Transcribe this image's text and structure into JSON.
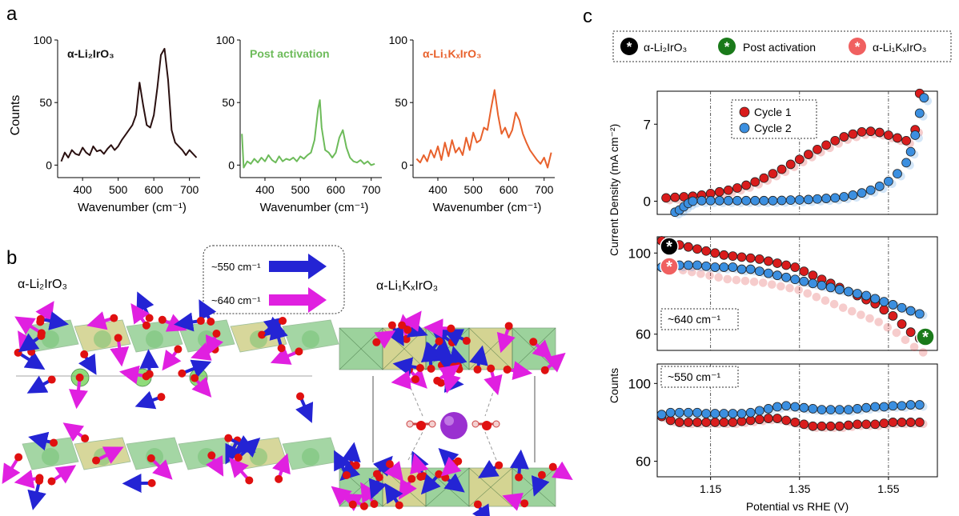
{
  "panel_labels": {
    "a": "a",
    "b": "b",
    "c": "c"
  },
  "colors": {
    "li2iro3": "#2a1010",
    "post": "#6dbb5a",
    "li1kx": "#e8612c",
    "cycle1": "#d91c1c",
    "cycle2": "#3b8fe0",
    "blue_arrow": "#2424d4",
    "magenta_arrow": "#e020e0",
    "octa_green": "#5bb55b",
    "octa_yellow": "#b8b84a",
    "oxygen": "#e01010",
    "potassium": "#9a30d0",
    "lithium": "#8fdc7a",
    "legend_green_star": "#1a7a1a",
    "legend_pink_star": "#f06060"
  },
  "panel_b": {
    "left_title": "α-Li₂IrO₃",
    "right_title": "α-Li₁KₓIrO₃",
    "legend": [
      {
        "label": "~550 cm⁻¹",
        "color": "#2424d4"
      },
      {
        "label": "~640 cm⁻¹",
        "color": "#e020e0"
      }
    ]
  },
  "chart_data": [
    {
      "type": "line",
      "panel": "a-1",
      "label": "α-Li₂IrO₃",
      "xlabel": "Wavenumber (cm⁻¹)",
      "ylabel": "Counts",
      "xlim": [
        330,
        730
      ],
      "ylim": [
        -10,
        100
      ],
      "xticks": [
        "400",
        "500",
        "600",
        "700"
      ],
      "yticks": [
        "0",
        "50",
        "100"
      ],
      "x": [
        340,
        350,
        360,
        370,
        380,
        390,
        400,
        410,
        420,
        430,
        440,
        450,
        460,
        470,
        480,
        490,
        500,
        510,
        520,
        530,
        540,
        550,
        560,
        570,
        580,
        590,
        600,
        610,
        620,
        630,
        640,
        650,
        660,
        670,
        680,
        690,
        700,
        710,
        720
      ],
      "y": [
        3,
        10,
        6,
        12,
        9,
        8,
        14,
        10,
        8,
        15,
        11,
        12,
        9,
        13,
        16,
        12,
        15,
        20,
        24,
        28,
        32,
        40,
        66,
        48,
        32,
        30,
        40,
        62,
        88,
        93,
        68,
        28,
        18,
        15,
        12,
        8,
        12,
        9,
        6
      ]
    },
    {
      "type": "line",
      "panel": "a-2",
      "label": "Post activation",
      "xlabel": "Wavenumber (cm⁻¹)",
      "ylabel": "",
      "xlim": [
        330,
        730
      ],
      "ylim": [
        -10,
        100
      ],
      "xticks": [
        "400",
        "500",
        "600",
        "700"
      ],
      "yticks": [
        "0",
        "50",
        "100"
      ],
      "x": [
        335,
        340,
        350,
        360,
        370,
        380,
        390,
        400,
        410,
        420,
        430,
        440,
        450,
        460,
        470,
        480,
        490,
        500,
        510,
        520,
        530,
        540,
        550,
        555,
        560,
        570,
        580,
        590,
        600,
        610,
        620,
        630,
        640,
        650,
        660,
        670,
        680,
        690,
        700,
        710
      ],
      "y": [
        25,
        -2,
        3,
        1,
        5,
        2,
        6,
        3,
        8,
        4,
        2,
        7,
        3,
        5,
        4,
        6,
        3,
        7,
        5,
        8,
        10,
        20,
        45,
        52,
        30,
        12,
        10,
        6,
        10,
        22,
        28,
        14,
        6,
        3,
        2,
        4,
        1,
        3,
        0,
        1
      ]
    },
    {
      "type": "line",
      "panel": "a-3",
      "label": "α-Li₁KₓIrO₃",
      "xlabel": "Wavenumber (cm⁻¹)",
      "ylabel": "",
      "xlim": [
        330,
        730
      ],
      "ylim": [
        -10,
        100
      ],
      "xticks": [
        "400",
        "500",
        "600",
        "700"
      ],
      "yticks": [
        "0",
        "50",
        "100"
      ],
      "x": [
        340,
        350,
        360,
        370,
        380,
        390,
        400,
        410,
        420,
        430,
        440,
        450,
        460,
        470,
        480,
        490,
        500,
        510,
        520,
        530,
        540,
        550,
        560,
        570,
        580,
        590,
        600,
        610,
        620,
        630,
        640,
        650,
        660,
        670,
        680,
        690,
        700,
        710,
        720
      ],
      "y": [
        5,
        2,
        8,
        3,
        12,
        6,
        15,
        4,
        18,
        7,
        20,
        10,
        14,
        8,
        22,
        12,
        26,
        18,
        20,
        30,
        28,
        45,
        60,
        40,
        25,
        30,
        22,
        28,
        42,
        36,
        25,
        18,
        12,
        8,
        4,
        1,
        6,
        -2,
        10
      ]
    },
    {
      "type": "scatter",
      "panel": "c-top",
      "xlim": [
        1.03,
        1.66
      ],
      "ylim": [
        -1.2,
        10
      ],
      "yticks": [
        "0",
        "7"
      ],
      "ylabel": "Current Density (mA cm⁻²)",
      "legend": [
        "Cycle 1",
        "Cycle 2"
      ],
      "vlines": [
        1.15,
        1.35,
        1.55
      ],
      "series": [
        {
          "name": "Cycle 1",
          "x": [
            1.05,
            1.07,
            1.09,
            1.11,
            1.13,
            1.15,
            1.17,
            1.19,
            1.21,
            1.23,
            1.25,
            1.27,
            1.29,
            1.31,
            1.33,
            1.35,
            1.37,
            1.39,
            1.41,
            1.43,
            1.45,
            1.47,
            1.49,
            1.51,
            1.53,
            1.55,
            1.57,
            1.59,
            1.61,
            1.62
          ],
          "y": [
            0.3,
            0.35,
            0.4,
            0.45,
            0.55,
            0.7,
            0.85,
            1.0,
            1.2,
            1.45,
            1.75,
            2.1,
            2.5,
            2.9,
            3.35,
            3.8,
            4.25,
            4.7,
            5.1,
            5.5,
            5.85,
            6.1,
            6.3,
            6.35,
            6.25,
            6.0,
            5.75,
            5.5,
            6.5,
            9.8
          ]
        },
        {
          "name": "Cycle 2",
          "x": [
            1.07,
            1.08,
            1.09,
            1.1,
            1.11,
            1.13,
            1.15,
            1.17,
            1.19,
            1.21,
            1.23,
            1.25,
            1.27,
            1.29,
            1.31,
            1.33,
            1.35,
            1.37,
            1.39,
            1.41,
            1.43,
            1.45,
            1.47,
            1.49,
            1.51,
            1.53,
            1.55,
            1.57,
            1.59,
            1.6,
            1.61,
            1.62,
            1.63
          ],
          "y": [
            -1.0,
            -0.8,
            -0.5,
            -0.2,
            0.0,
            0.05,
            0.05,
            0.05,
            0.05,
            0.05,
            0.05,
            0.05,
            0.05,
            0.05,
            0.07,
            0.1,
            0.12,
            0.15,
            0.2,
            0.25,
            0.3,
            0.4,
            0.55,
            0.75,
            1.0,
            1.35,
            1.8,
            2.5,
            3.5,
            4.5,
            6.0,
            8.0,
            9.4
          ]
        }
      ]
    },
    {
      "type": "scatter",
      "panel": "c-mid",
      "xlim": [
        1.03,
        1.66
      ],
      "ylim": [
        52,
        108
      ],
      "yticks": [
        "60",
        "100"
      ],
      "ylabel": "Counts",
      "annotation": "~640 cm⁻¹",
      "vlines": [
        1.15,
        1.35,
        1.55
      ],
      "series": [
        {
          "name": "Cycle 1",
          "x": [
            1.04,
            1.06,
            1.08,
            1.1,
            1.12,
            1.14,
            1.16,
            1.18,
            1.2,
            1.22,
            1.24,
            1.26,
            1.28,
            1.3,
            1.32,
            1.34,
            1.36,
            1.38,
            1.4,
            1.42,
            1.44,
            1.46,
            1.48,
            1.5,
            1.52,
            1.54,
            1.56,
            1.58,
            1.6,
            1.62
          ],
          "y": [
            106,
            105,
            104,
            103,
            102,
            101,
            100,
            99,
            98.5,
            98,
            97.5,
            97,
            96,
            95,
            94,
            93,
            91,
            89,
            87,
            85,
            83,
            81,
            79,
            77,
            75,
            72,
            69,
            65,
            61,
            58
          ]
        },
        {
          "name": "Cycle 2",
          "x": [
            1.04,
            1.06,
            1.08,
            1.1,
            1.12,
            1.14,
            1.16,
            1.18,
            1.2,
            1.22,
            1.24,
            1.26,
            1.28,
            1.3,
            1.32,
            1.34,
            1.36,
            1.38,
            1.4,
            1.42,
            1.44,
            1.46,
            1.48,
            1.5,
            1.52,
            1.54,
            1.56,
            1.58,
            1.6,
            1.62
          ],
          "y": [
            93,
            94,
            94,
            94,
            94,
            93.5,
            93,
            93,
            93,
            92,
            92,
            91,
            90,
            89,
            88,
            87,
            86,
            85,
            84,
            83,
            82,
            81,
            80,
            79,
            77.5,
            76,
            74.5,
            73,
            71.5,
            70
          ]
        }
      ]
    },
    {
      "type": "scatter",
      "panel": "c-bottom",
      "xlim": [
        1.03,
        1.66
      ],
      "ylim": [
        52,
        110
      ],
      "yticks": [
        "60",
        "100"
      ],
      "xticks": [
        "1.15",
        "1.35",
        "1.55"
      ],
      "xlabel": "Potential vs RHE (V)",
      "annotation": "~550 cm⁻¹",
      "vlines": [
        1.15,
        1.35,
        1.55
      ],
      "series": [
        {
          "name": "Cycle 1",
          "x": [
            1.04,
            1.06,
            1.08,
            1.1,
            1.12,
            1.14,
            1.16,
            1.18,
            1.2,
            1.22,
            1.24,
            1.26,
            1.28,
            1.3,
            1.32,
            1.34,
            1.36,
            1.38,
            1.4,
            1.42,
            1.44,
            1.46,
            1.48,
            1.5,
            1.52,
            1.54,
            1.56,
            1.58,
            1.6,
            1.62
          ],
          "y": [
            83,
            81,
            80,
            80,
            80,
            80,
            80,
            80,
            80,
            80.5,
            81,
            81.5,
            82,
            82,
            81,
            80,
            79,
            78,
            78,
            78,
            78,
            78.5,
            79,
            79,
            79,
            79.5,
            80,
            80,
            80,
            80
          ]
        },
        {
          "name": "Cycle 2",
          "x": [
            1.04,
            1.06,
            1.08,
            1.1,
            1.12,
            1.14,
            1.16,
            1.18,
            1.2,
            1.22,
            1.24,
            1.26,
            1.28,
            1.3,
            1.32,
            1.34,
            1.36,
            1.38,
            1.4,
            1.42,
            1.44,
            1.46,
            1.48,
            1.5,
            1.52,
            1.54,
            1.56,
            1.58,
            1.6,
            1.62
          ],
          "y": [
            84,
            85,
            85,
            85,
            85,
            84.5,
            84.5,
            84.5,
            84.5,
            84.5,
            85,
            86,
            87,
            88,
            88.5,
            88,
            87.5,
            87,
            86.5,
            86.5,
            86.5,
            86.5,
            87,
            87.5,
            88,
            88,
            88.5,
            88.5,
            89,
            89
          ]
        }
      ]
    }
  ],
  "panel_c_legend": [
    {
      "label": "α-Li₂IrO₃",
      "color": "#000000"
    },
    {
      "label": "Post activation",
      "color": "#1a7a1a"
    },
    {
      "label": "α-Li₁KₓIrO₃",
      "color": "#f06060"
    }
  ]
}
